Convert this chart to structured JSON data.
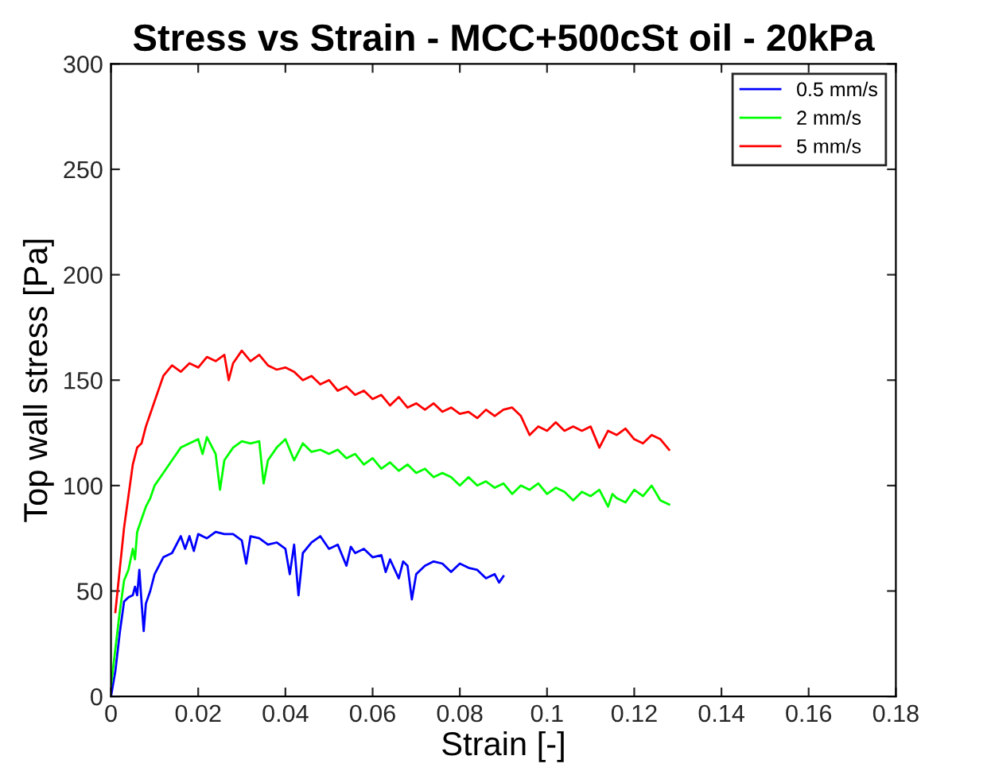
{
  "chart_data": {
    "type": "line",
    "title": "Stress vs Strain - MCC+500cSt oil - 20kPa",
    "xlabel": "Strain [-]",
    "ylabel": "Top wall stress [Pa]",
    "xlim": [
      0,
      0.18
    ],
    "ylim": [
      0,
      300
    ],
    "xticks": [
      0,
      0.02,
      0.04,
      0.06,
      0.08,
      0.1,
      0.12,
      0.14,
      0.16,
      0.18
    ],
    "yticks": [
      0,
      50,
      100,
      150,
      200,
      250,
      300
    ],
    "legend": "top right",
    "marker": "none",
    "line_style": "solid",
    "series": [
      {
        "name": "0.5 mm/s",
        "color": "#0000ff",
        "x": [
          0,
          0.001,
          0.002,
          0.003,
          0.004,
          0.005,
          0.0055,
          0.006,
          0.0065,
          0.007,
          0.0075,
          0.008,
          0.009,
          0.01,
          0.012,
          0.014,
          0.016,
          0.017,
          0.018,
          0.019,
          0.02,
          0.022,
          0.024,
          0.026,
          0.028,
          0.03,
          0.031,
          0.032,
          0.034,
          0.036,
          0.038,
          0.04,
          0.041,
          0.042,
          0.043,
          0.044,
          0.046,
          0.048,
          0.05,
          0.052,
          0.054,
          0.055,
          0.056,
          0.058,
          0.06,
          0.062,
          0.063,
          0.064,
          0.066,
          0.067,
          0.068,
          0.069,
          0.07,
          0.072,
          0.074,
          0.076,
          0.078,
          0.08,
          0.082,
          0.084,
          0.086,
          0.088,
          0.089,
          0.09
        ],
        "values": [
          0,
          12,
          30,
          45,
          47,
          48,
          52,
          48,
          60,
          45,
          31,
          44,
          50,
          58,
          66,
          68,
          76,
          70,
          76,
          69,
          77,
          75,
          78,
          77,
          77,
          74,
          63,
          76,
          75,
          72,
          73,
          70,
          58,
          72,
          48,
          68,
          73,
          76,
          70,
          72,
          62,
          71,
          68,
          70,
          66,
          67,
          59,
          65,
          56,
          64,
          62,
          46,
          58,
          62,
          64,
          63,
          59,
          63,
          61,
          60,
          56,
          58,
          54,
          57
        ]
      },
      {
        "name": "2 mm/s",
        "color": "#00ff00",
        "x": [
          0,
          0.002,
          0.003,
          0.004,
          0.005,
          0.0055,
          0.006,
          0.007,
          0.008,
          0.009,
          0.01,
          0.012,
          0.014,
          0.016,
          0.018,
          0.02,
          0.021,
          0.022,
          0.024,
          0.025,
          0.026,
          0.028,
          0.03,
          0.032,
          0.034,
          0.035,
          0.036,
          0.038,
          0.04,
          0.042,
          0.044,
          0.046,
          0.048,
          0.05,
          0.052,
          0.054,
          0.056,
          0.058,
          0.06,
          0.062,
          0.064,
          0.066,
          0.068,
          0.07,
          0.072,
          0.074,
          0.076,
          0.078,
          0.08,
          0.082,
          0.084,
          0.086,
          0.088,
          0.09,
          0.092,
          0.094,
          0.096,
          0.098,
          0.1,
          0.102,
          0.104,
          0.106,
          0.108,
          0.11,
          0.112,
          0.114,
          0.115,
          0.116,
          0.118,
          0.12,
          0.122,
          0.124,
          0.126,
          0.128
        ],
        "values": [
          5,
          40,
          55,
          60,
          70,
          65,
          78,
          84,
          90,
          94,
          100,
          106,
          112,
          118,
          120,
          122,
          115,
          123,
          115,
          98,
          112,
          118,
          121,
          120,
          121,
          101,
          112,
          118,
          122,
          112,
          120,
          116,
          117,
          115,
          117,
          113,
          115,
          110,
          113,
          108,
          111,
          107,
          110,
          106,
          108,
          104,
          106,
          104,
          100,
          104,
          100,
          102,
          99,
          101,
          96,
          100,
          98,
          101,
          96,
          99,
          97,
          93,
          97,
          95,
          98,
          90,
          96,
          94,
          92,
          98,
          95,
          100,
          93,
          91
        ]
      },
      {
        "name": "5 mm/s",
        "color": "#ff0000",
        "x": [
          0.001,
          0.002,
          0.003,
          0.004,
          0.005,
          0.006,
          0.007,
          0.008,
          0.009,
          0.01,
          0.011,
          0.012,
          0.014,
          0.016,
          0.018,
          0.02,
          0.022,
          0.024,
          0.026,
          0.027,
          0.028,
          0.03,
          0.032,
          0.034,
          0.036,
          0.038,
          0.04,
          0.042,
          0.044,
          0.046,
          0.048,
          0.05,
          0.052,
          0.054,
          0.056,
          0.058,
          0.06,
          0.062,
          0.064,
          0.066,
          0.068,
          0.07,
          0.072,
          0.074,
          0.076,
          0.078,
          0.08,
          0.082,
          0.084,
          0.086,
          0.088,
          0.09,
          0.092,
          0.094,
          0.096,
          0.098,
          0.1,
          0.102,
          0.104,
          0.106,
          0.108,
          0.11,
          0.112,
          0.114,
          0.116,
          0.118,
          0.12,
          0.122,
          0.124,
          0.126,
          0.128
        ],
        "values": [
          40,
          60,
          80,
          95,
          110,
          118,
          120,
          128,
          134,
          140,
          146,
          152,
          157,
          154,
          158,
          156,
          161,
          159,
          162,
          150,
          158,
          164,
          159,
          162,
          157,
          155,
          156,
          154,
          150,
          152,
          148,
          150,
          145,
          147,
          143,
          145,
          141,
          143,
          138,
          142,
          137,
          139,
          136,
          139,
          135,
          137,
          134,
          135,
          132,
          136,
          133,
          136,
          137,
          133,
          124,
          128,
          126,
          130,
          126,
          128,
          126,
          128,
          118,
          126,
          124,
          127,
          122,
          120,
          124,
          122,
          117
        ]
      }
    ]
  }
}
